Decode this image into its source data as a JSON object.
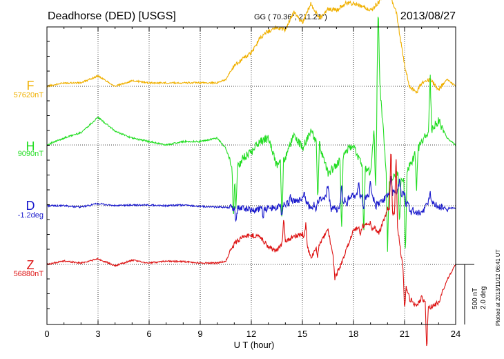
{
  "header": {
    "station": "Deadhorse (DED)  [USGS]",
    "coords": "GG ( 70.36°, 211.21°)",
    "date": "2013/08/27"
  },
  "xlabel": "U T (hour)",
  "scale_label_1": "500 nT",
  "scale_label_2": "2.0 deg",
  "footer": "Plotted at 2013/11/12 06:41 UT",
  "chart_data": {
    "type": "line",
    "x_range": [
      0,
      24
    ],
    "x_ticks": [
      0,
      3,
      6,
      9,
      12,
      15,
      18,
      21,
      24
    ],
    "grid": true,
    "series": [
      {
        "name": "F",
        "baseline_label": "57620nT",
        "color": "#f0b000",
        "x": [
          0,
          1,
          2,
          3,
          4,
          5,
          6,
          7,
          8,
          9,
          10,
          10.5,
          11,
          11.5,
          12,
          12.5,
          13,
          13.5,
          14,
          14.5,
          15,
          15.5,
          16,
          16.5,
          17,
          17.5,
          18,
          18.5,
          19,
          19.5,
          20,
          20.5,
          21,
          21.3,
          21.7,
          22,
          22.5,
          23,
          23.5,
          24
        ],
        "y": [
          0,
          5,
          5,
          15,
          0,
          8,
          5,
          5,
          5,
          5,
          5,
          10,
          30,
          40,
          48,
          70,
          80,
          85,
          82,
          108,
          92,
          120,
          98,
          112,
          110,
          120,
          120,
          115,
          110,
          122,
          140,
          110,
          30,
          0,
          -10,
          5,
          10,
          -5,
          10,
          0
        ]
      },
      {
        "name": "H",
        "baseline_label": "9090nT",
        "color": "#22dd22",
        "x": [
          0,
          1,
          2,
          3,
          4,
          5,
          6,
          7,
          8,
          9,
          10,
          10.5,
          11,
          11.5,
          12,
          12.5,
          13,
          13.5,
          14,
          14.5,
          15,
          15.5,
          16,
          16.5,
          17,
          17.5,
          18,
          18.5,
          19,
          19.5,
          20,
          20.5,
          21,
          21.3,
          21.7,
          22,
          22.5,
          23,
          23.5,
          24
        ],
        "y": [
          0,
          10,
          18,
          40,
          20,
          10,
          5,
          0,
          5,
          5,
          10,
          -5,
          -40,
          -20,
          -10,
          5,
          10,
          -30,
          -20,
          15,
          -5,
          20,
          0,
          -40,
          -30,
          -10,
          0,
          -30,
          -40,
          100,
          -60,
          -40,
          -50,
          -30,
          -10,
          5,
          20,
          35,
          10,
          0
        ],
        "spikes": [
          [
            10.95,
            -72
          ],
          [
            11.1,
            -60
          ],
          [
            13.8,
            -88
          ],
          [
            15.9,
            -85
          ],
          [
            17.3,
            -115
          ],
          [
            18.6,
            -100
          ],
          [
            19.3,
            -110
          ],
          [
            19.45,
            120
          ],
          [
            20.0,
            -95
          ],
          [
            20.7,
            -70
          ],
          [
            21.05,
            -115
          ],
          [
            21.7,
            -55
          ],
          [
            22.5,
            85
          ]
        ]
      },
      {
        "name": "D",
        "baseline_label": "-1.2deg",
        "color": "#1a1acc",
        "x": [
          0,
          1,
          2,
          3,
          4,
          5,
          6,
          7,
          8,
          9,
          10,
          10.5,
          11,
          11.5,
          12,
          12.5,
          13,
          13.5,
          14,
          14.5,
          15,
          15.5,
          16,
          16.5,
          17,
          17.5,
          18,
          18.5,
          19,
          19.5,
          20,
          20.5,
          21,
          21.3,
          21.7,
          22,
          22.5,
          23,
          23.5,
          24
        ],
        "y": [
          0,
          0,
          -2,
          3,
          0,
          1,
          1,
          0,
          1,
          -1,
          -2,
          -2,
          -4,
          -3,
          -6,
          -4,
          -5,
          -2,
          2,
          6,
          10,
          -4,
          10,
          14,
          -7,
          8,
          15,
          12,
          14,
          4,
          14,
          22,
          16,
          -4,
          -9,
          -12,
          8,
          -1,
          -3,
          -4
        ],
        "spikes": [
          [
            11.1,
            -18
          ],
          [
            12.7,
            -10
          ],
          [
            13.8,
            -18
          ],
          [
            14.3,
            12
          ],
          [
            15.1,
            16
          ],
          [
            15.8,
            -12
          ],
          [
            16.5,
            20
          ],
          [
            16.7,
            -16
          ],
          [
            17.3,
            26
          ],
          [
            17.6,
            -14
          ],
          [
            18.3,
            24
          ],
          [
            18.6,
            -16
          ],
          [
            19.0,
            20
          ],
          [
            19.3,
            -12
          ],
          [
            20.2,
            28
          ],
          [
            20.7,
            20
          ],
          [
            21.1,
            -10
          ],
          [
            21.4,
            -6
          ],
          [
            22.5,
            14
          ],
          [
            23.5,
            -6
          ]
        ]
      },
      {
        "name": "Z",
        "baseline_label": "56880nT",
        "color": "#dd1111",
        "x": [
          0,
          1,
          2,
          3,
          4,
          5,
          6,
          7,
          8,
          9,
          10,
          10.5,
          11,
          11.5,
          12,
          12.5,
          13,
          13.5,
          14,
          14.5,
          15,
          15.5,
          16,
          16.5,
          17,
          17.5,
          18,
          18.5,
          19,
          19.5,
          20,
          20.5,
          21,
          21.3,
          21.7,
          22,
          22.5,
          23,
          23.5,
          24
        ],
        "y": [
          0,
          5,
          2,
          8,
          -2,
          6,
          2,
          5,
          4,
          2,
          2,
          5,
          30,
          40,
          42,
          40,
          25,
          20,
          35,
          40,
          45,
          10,
          30,
          50,
          -15,
          15,
          50,
          55,
          60,
          45,
          80,
          70,
          -25,
          -50,
          -60,
          -48,
          -62,
          -55,
          -22,
          0
        ],
        "spikes": [
          [
            13.9,
            38
          ],
          [
            15.2,
            30
          ],
          [
            15.9,
            -14
          ],
          [
            16.9,
            -20
          ],
          [
            18.4,
            -14
          ],
          [
            19.1,
            -10
          ],
          [
            20.2,
            100
          ],
          [
            20.5,
            90
          ],
          [
            21.0,
            -40
          ],
          [
            22.3,
            -70
          ]
        ]
      }
    ]
  }
}
